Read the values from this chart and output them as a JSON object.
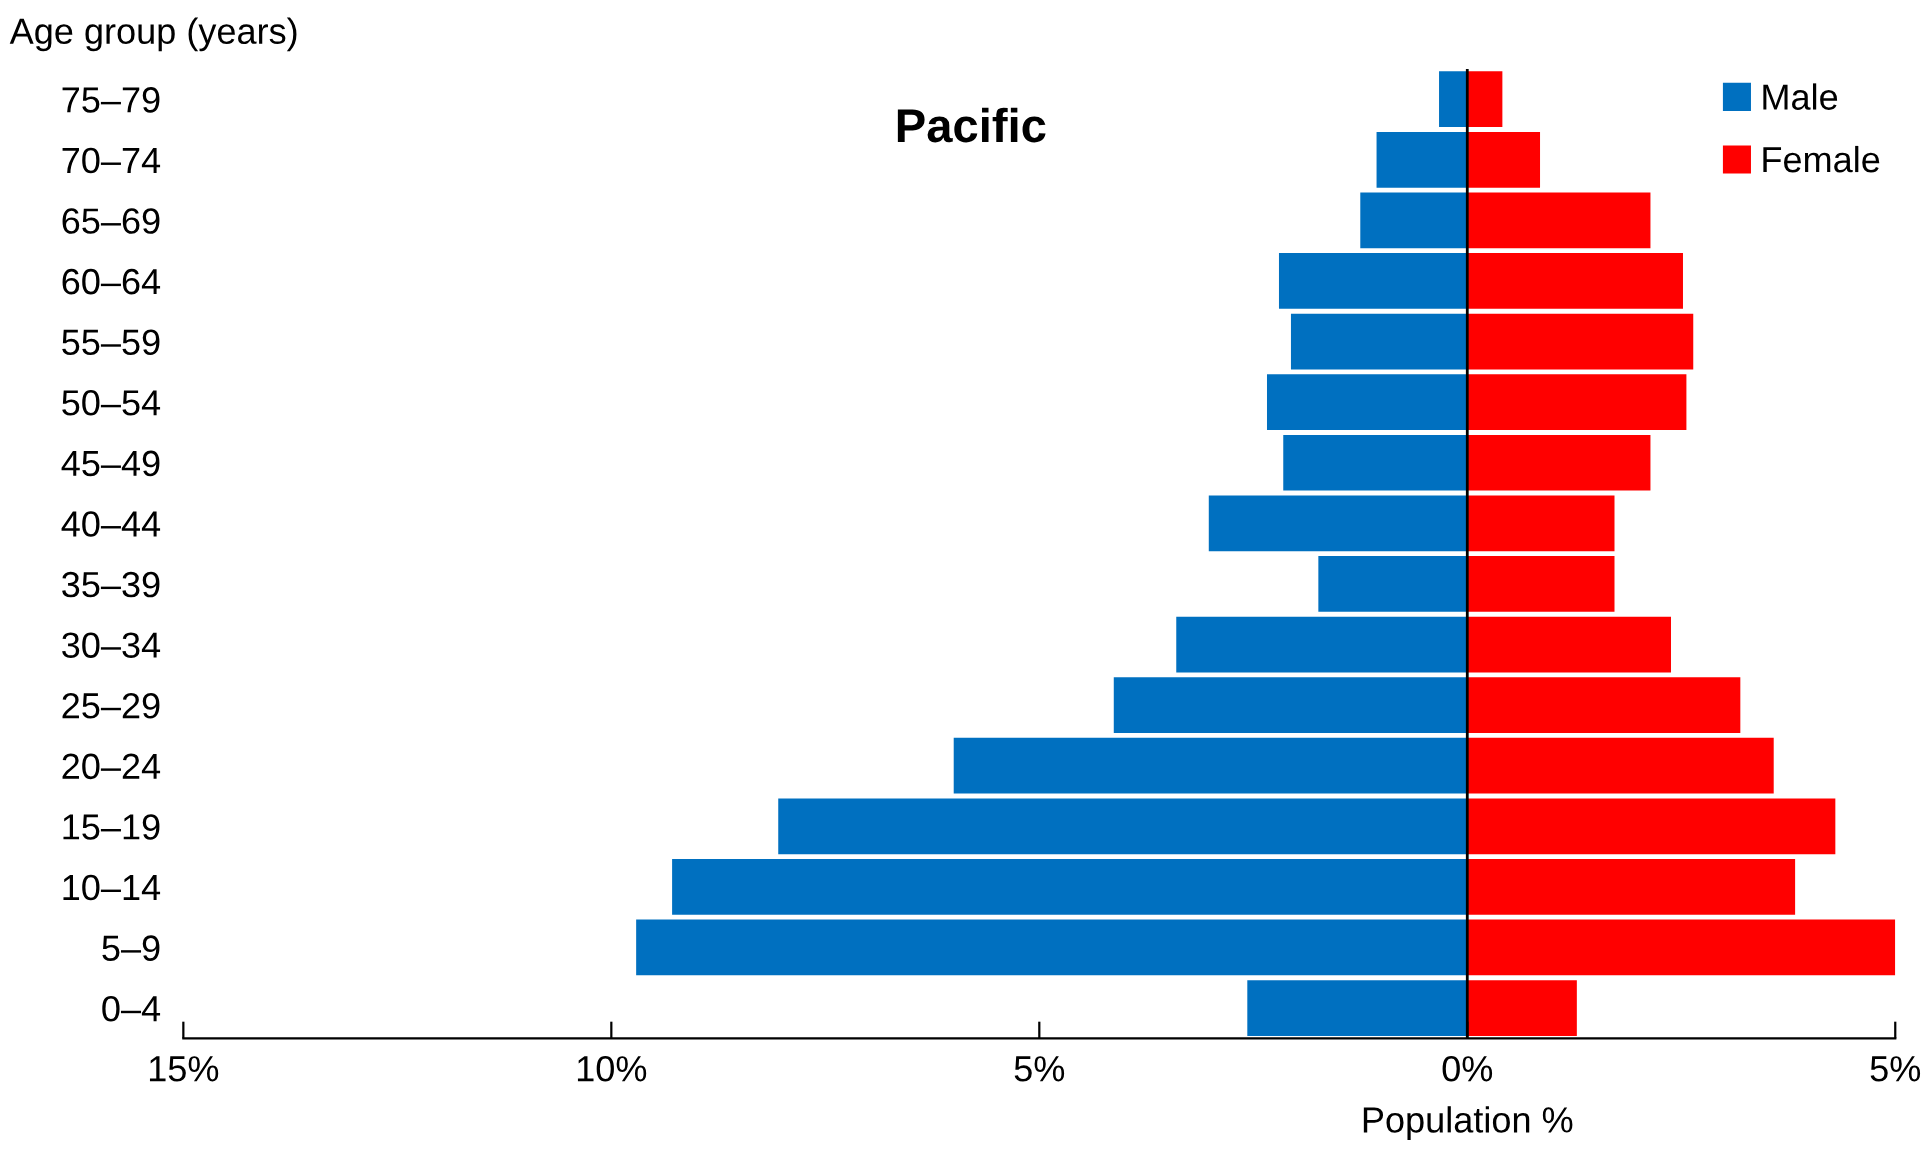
{
  "chart_data": {
    "type": "bar",
    "orientation": "horizontal",
    "title": "Pacific",
    "xlabel": "Population %",
    "ylabel": "Age group (years)",
    "categories": [
      "75–79",
      "70–74",
      "65–69",
      "60–64",
      "55–59",
      "50–54",
      "45–49",
      "40–44",
      "35–39",
      "30–34",
      "25–29",
      "20–24",
      "15–19",
      "10–14",
      "5–9",
      "0–4"
    ],
    "series": [
      {
        "name": "Male",
        "color": "#0070c0",
        "values": [
          -0.33,
          -1.06,
          -1.25,
          -2.2,
          -2.06,
          -2.34,
          -2.15,
          -3.02,
          -1.74,
          -3.4,
          -4.13,
          -6.0,
          -8.05,
          -9.29,
          -9.71,
          -2.57
        ]
      },
      {
        "name": "Female",
        "color": "#ff0000",
        "values": [
          0.41,
          0.85,
          2.14,
          2.52,
          2.64,
          2.56,
          2.14,
          1.72,
          1.72,
          2.38,
          3.19,
          3.58,
          4.3,
          3.83,
          5.0,
          1.28
        ]
      }
    ],
    "xlim": [
      -15,
      5
    ],
    "xticks": [
      {
        "value": -15,
        "label": "15%"
      },
      {
        "value": -10,
        "label": "10%"
      },
      {
        "value": -5,
        "label": "5%"
      },
      {
        "value": 0,
        "label": "0%"
      },
      {
        "value": 5,
        "label": "5%"
      }
    ],
    "ref_lines": [
      {
        "axis": "x",
        "value": 0,
        "color": "#000000"
      }
    ],
    "stacked": true,
    "legend": "top right",
    "grid": false
  }
}
